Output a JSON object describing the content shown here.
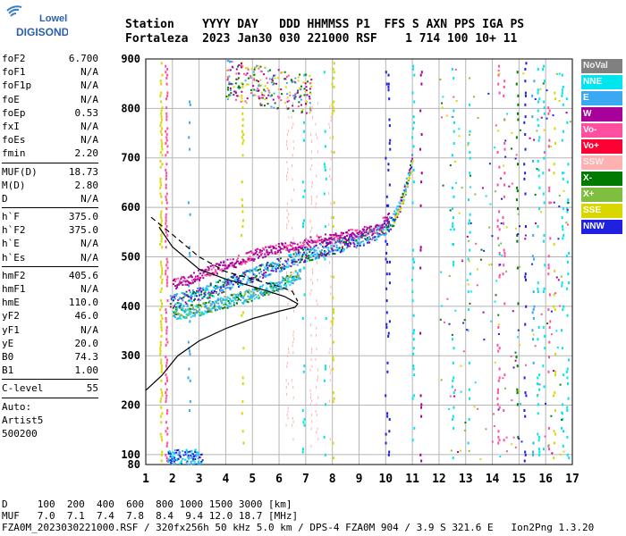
{
  "logo": {
    "line1": "Lowell",
    "line2": "DIGISONDE"
  },
  "header": {
    "row1": "Station    YYYY DAY   DDD HHMMSS P1  FFS S AXN PPS IGA PS",
    "row2": "Fortaleza  2023 Jan30 030 221000 RSF    1 714 100 10+ 11"
  },
  "params": [
    {
      "k": "foF2",
      "v": "6.700"
    },
    {
      "k": "foF1",
      "v": "N/A"
    },
    {
      "k": "foF1p",
      "v": "N/A"
    },
    {
      "k": "foE",
      "v": "N/A"
    },
    {
      "k": "foEp",
      "v": "0.53"
    },
    {
      "k": "fxI",
      "v": "N/A"
    },
    {
      "k": "foEs",
      "v": "N/A"
    },
    {
      "k": "fmin",
      "v": "2.20"
    },
    {
      "sep": true
    },
    {
      "k": "MUF(D)",
      "v": "18.73"
    },
    {
      "k": "M(D)",
      "v": "2.80"
    },
    {
      "k": "D",
      "v": "N/A"
    },
    {
      "sep": true
    },
    {
      "k": "h`F",
      "v": "375.0"
    },
    {
      "k": "h`F2",
      "v": "375.0"
    },
    {
      "k": "h`E",
      "v": "N/A"
    },
    {
      "k": "h`Es",
      "v": "N/A"
    },
    {
      "sep": true
    },
    {
      "k": "hmF2",
      "v": "405.6"
    },
    {
      "k": "hmF1",
      "v": "N/A"
    },
    {
      "k": "hmE",
      "v": "110.0"
    },
    {
      "k": "yF2",
      "v": "46.0"
    },
    {
      "k": "yF1",
      "v": "N/A"
    },
    {
      "k": "yE",
      "v": "20.0"
    },
    {
      "k": "B0",
      "v": "74.3"
    },
    {
      "k": "B1",
      "v": "1.00"
    },
    {
      "sep": true
    },
    {
      "k": "C-level",
      "v": "55"
    },
    {
      "sep": true
    },
    {
      "note": "Auto:"
    },
    {
      "note": "Artist5"
    },
    {
      "note": "500200"
    }
  ],
  "legend": [
    {
      "label": "NoVal",
      "color": "#808080"
    },
    {
      "label": "NNE",
      "color": "#00e5ee"
    },
    {
      "label": "E",
      "color": "#3aa8f2"
    },
    {
      "label": "W",
      "color": "#a8009b"
    },
    {
      "label": "Vo-",
      "color": "#ff4f9e"
    },
    {
      "label": "Vo+",
      "color": "#ff0033"
    },
    {
      "label": "SSW",
      "color": "#ffb0b0"
    },
    {
      "label": "X-",
      "color": "#007a00"
    },
    {
      "label": "X+",
      "color": "#7fbf3f"
    },
    {
      "label": "SSE",
      "color": "#d8d800"
    },
    {
      "label": "NNW",
      "color": "#2020e0"
    }
  ],
  "bottom": {
    "d_row": "D     100  200  400  600  800 1000 1500 3000 [km]",
    "muf_row": "MUF   7.0  7.1  7.4  7.8  8.4  9.4 12.0 18.7 [MHz]",
    "footer": "FZA0M_2023030221000.RSF / 320fx256h 50 kHz 5.0 km / DPS-4 FZA0M 904 / 3.9 S 321.6 E   Ion2Png 1.3.20"
  },
  "chart_data": {
    "type": "scatter",
    "title": "",
    "xlabel": "",
    "ylabel": "",
    "xlim": [
      1,
      17
    ],
    "ylim": [
      80,
      900
    ],
    "x_ticks": [
      1,
      2,
      3,
      4,
      5,
      6,
      7,
      8,
      9,
      10,
      11,
      12,
      13,
      14,
      15,
      16,
      17
    ],
    "y_ticks": [
      100,
      200,
      300,
      400,
      500,
      600,
      700,
      800,
      900
    ],
    "y_ticks_extra": [
      80
    ],
    "grid": true,
    "trace_o": [
      [
        1.9,
        405
      ],
      [
        2.3,
        410
      ],
      [
        3.0,
        420
      ],
      [
        4.0,
        440
      ],
      [
        5.0,
        460
      ],
      [
        6.0,
        480
      ],
      [
        7.0,
        500
      ],
      [
        8.0,
        515
      ],
      [
        9.0,
        530
      ],
      [
        9.5,
        540
      ],
      [
        10.0,
        555
      ],
      [
        10.3,
        575
      ],
      [
        10.6,
        610
      ],
      [
        10.9,
        670
      ],
      [
        11.0,
        700
      ]
    ],
    "trace_x": [
      [
        2.0,
        440
      ],
      [
        3.0,
        460
      ],
      [
        4.0,
        480
      ],
      [
        5.0,
        500
      ],
      [
        6.0,
        515
      ],
      [
        7.0,
        525
      ],
      [
        8.0,
        535
      ],
      [
        9.0,
        545
      ],
      [
        9.7,
        555
      ],
      [
        10.1,
        580
      ]
    ],
    "trace_low": [
      [
        2.0,
        385
      ],
      [
        3.0,
        395
      ],
      [
        4.0,
        410
      ],
      [
        5.0,
        425
      ],
      [
        6.0,
        445
      ],
      [
        6.8,
        470
      ]
    ],
    "profile_solid": [
      [
        1.0,
        230
      ],
      [
        1.6,
        260
      ],
      [
        2.2,
        300
      ],
      [
        3.0,
        330
      ],
      [
        4.0,
        355
      ],
      [
        5.0,
        375
      ],
      [
        6.0,
        390
      ],
      [
        6.6,
        398
      ],
      [
        6.7,
        405
      ],
      [
        6.2,
        420
      ],
      [
        5.0,
        440
      ],
      [
        4.0,
        455
      ],
      [
        3.0,
        475
      ],
      [
        2.0,
        520
      ],
      [
        1.5,
        560
      ]
    ],
    "profile_dashed": [
      [
        1.2,
        580
      ],
      [
        2.0,
        545
      ],
      [
        3.0,
        500
      ],
      [
        4.0,
        470
      ],
      [
        5.0,
        455
      ],
      [
        6.0,
        440
      ],
      [
        6.5,
        430
      ],
      [
        6.7,
        410
      ]
    ]
  }
}
